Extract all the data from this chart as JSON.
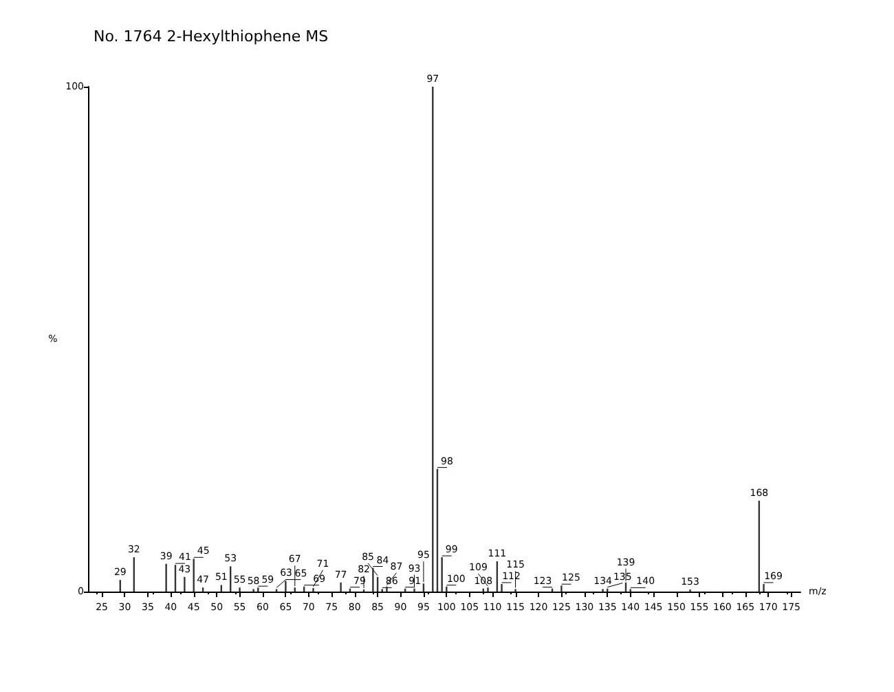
{
  "chart_data": {
    "type": "bar",
    "title": "No. 1764 2-Hexylthiophene MS",
    "xlabel": "m/z",
    "ylabel": "%",
    "x": [
      29,
      32,
      39,
      41,
      43,
      45,
      47,
      51,
      53,
      55,
      58,
      59,
      63,
      65,
      67,
      69,
      71,
      77,
      79,
      82,
      84,
      85,
      86,
      87,
      91,
      93,
      95,
      97,
      98,
      99,
      100,
      108,
      109,
      111,
      112,
      115,
      123,
      125,
      134,
      135,
      139,
      140,
      153,
      168,
      169
    ],
    "values": [
      2.3,
      6.8,
      5.5,
      5.3,
      2.9,
      6.5,
      0.8,
      1.3,
      5.0,
      0.8,
      0.5,
      0.8,
      0.5,
      2.1,
      0.8,
      1.0,
      0.7,
      1.8,
      0.6,
      0.4,
      4.7,
      2.9,
      0.5,
      1.0,
      0.6,
      0.6,
      1.6,
      100,
      24.3,
      6.8,
      1.0,
      0.6,
      0.8,
      6.0,
      1.5,
      0.5,
      0.6,
      1.2,
      0.5,
      0.6,
      1.8,
      0.5,
      0.4,
      18,
      1.5
    ],
    "annotations": [
      {
        "text": "29",
        "x": 29,
        "y": 2.3
      },
      {
        "text": "32",
        "x": 32,
        "y": 6.8
      },
      {
        "text": "39",
        "x": 39,
        "y": 5.5
      },
      {
        "text": "41",
        "x": 41,
        "y": 5.3
      },
      {
        "text": "43",
        "x": 43,
        "y": 2.9
      },
      {
        "text": "45",
        "x": 45,
        "y": 6.5
      },
      {
        "text": "47",
        "x": 47,
        "y": 0.8
      },
      {
        "text": "51",
        "x": 51,
        "y": 1.3
      },
      {
        "text": "53",
        "x": 53,
        "y": 5.0
      },
      {
        "text": "55",
        "x": 55,
        "y": 0.8
      },
      {
        "text": "58",
        "x": 58,
        "y": 0.5
      },
      {
        "text": "59",
        "x": 59,
        "y": 0.8
      },
      {
        "text": "63",
        "x": 63,
        "y": 0.5
      },
      {
        "text": "65",
        "x": 65,
        "y": 2.1
      },
      {
        "text": "67",
        "x": 67,
        "y": 0.8
      },
      {
        "text": "69",
        "x": 69,
        "y": 1.0
      },
      {
        "text": "71",
        "x": 71,
        "y": 0.7
      },
      {
        "text": "77",
        "x": 77,
        "y": 1.8
      },
      {
        "text": "79",
        "x": 79,
        "y": 0.6
      },
      {
        "text": "82",
        "x": 82,
        "y": 0.4
      },
      {
        "text": "84",
        "x": 84,
        "y": 4.7
      },
      {
        "text": "85",
        "x": 85,
        "y": 2.9
      },
      {
        "text": "86",
        "x": 86,
        "y": 0.5
      },
      {
        "text": "87",
        "x": 87,
        "y": 1.0
      },
      {
        "text": "91",
        "x": 91,
        "y": 0.6
      },
      {
        "text": "93",
        "x": 93,
        "y": 0.6
      },
      {
        "text": "95",
        "x": 95,
        "y": 1.6
      },
      {
        "text": "97",
        "x": 97,
        "y": 100
      },
      {
        "text": "98",
        "x": 98,
        "y": 24.3
      },
      {
        "text": "99",
        "x": 99,
        "y": 6.8
      },
      {
        "text": "100",
        "x": 100,
        "y": 1.0
      },
      {
        "text": "108",
        "x": 108,
        "y": 0.6
      },
      {
        "text": "109",
        "x": 109,
        "y": 0.8
      },
      {
        "text": "111",
        "x": 111,
        "y": 6.0
      },
      {
        "text": "112",
        "x": 112,
        "y": 1.5
      },
      {
        "text": "115",
        "x": 115,
        "y": 0.5
      },
      {
        "text": "123",
        "x": 123,
        "y": 0.6
      },
      {
        "text": "125",
        "x": 125,
        "y": 1.2
      },
      {
        "text": "134",
        "x": 134,
        "y": 0.5
      },
      {
        "text": "135",
        "x": 135,
        "y": 0.6
      },
      {
        "text": "139",
        "x": 139,
        "y": 1.8
      },
      {
        "text": "140",
        "x": 140,
        "y": 0.5
      },
      {
        "text": "153",
        "x": 153,
        "y": 0.4
      },
      {
        "text": "168",
        "x": 168,
        "y": 18
      },
      {
        "text": "169",
        "x": 169,
        "y": 1.5
      }
    ],
    "color": "#333333",
    "xlim": [
      22,
      177
    ],
    "xticks": [
      25,
      30,
      35,
      40,
      45,
      50,
      55,
      60,
      65,
      70,
      75,
      80,
      85,
      90,
      95,
      100,
      105,
      110,
      115,
      120,
      125,
      130,
      135,
      140,
      145,
      150,
      155,
      160,
      165,
      170,
      175
    ],
    "ylim": [
      0,
      100
    ],
    "yticks": [
      0,
      100
    ]
  }
}
